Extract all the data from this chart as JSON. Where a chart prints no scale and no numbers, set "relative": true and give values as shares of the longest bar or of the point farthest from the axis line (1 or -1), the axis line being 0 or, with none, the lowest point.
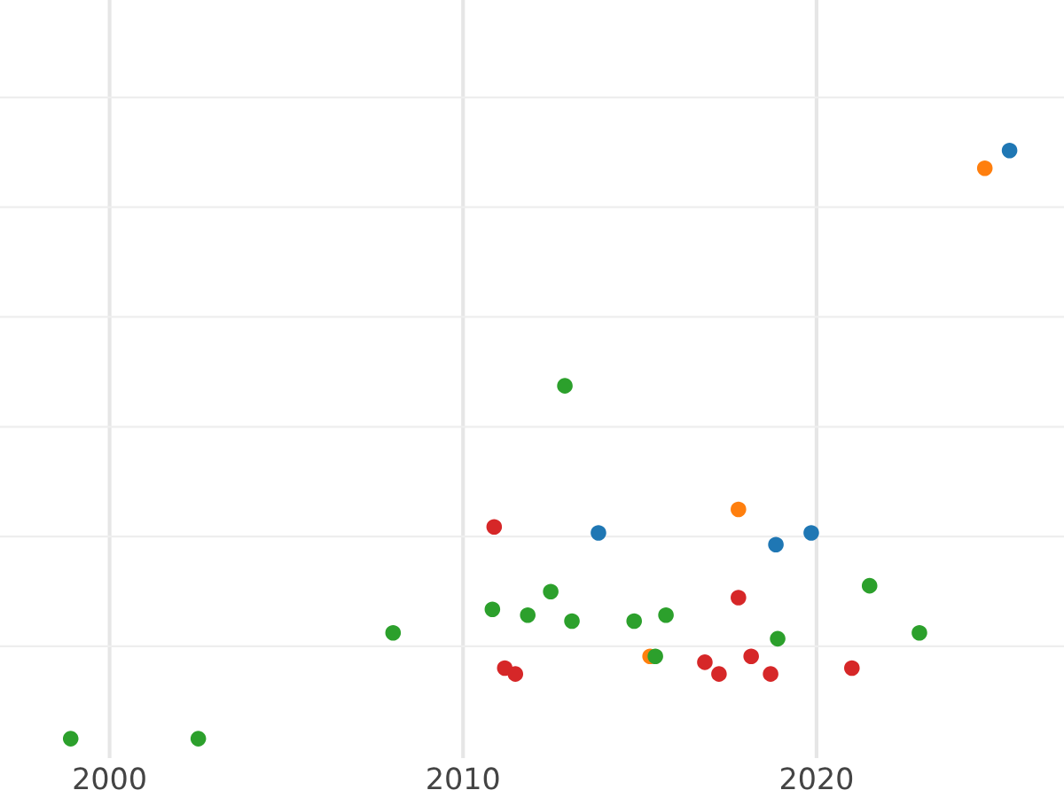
{
  "chart_data": {
    "type": "scatter",
    "relative": true,
    "grid": true,
    "tick_labels": "x",
    "xlim": [
      1996.9,
      2027.0
    ],
    "xticks": [
      2000,
      2010,
      2020
    ],
    "series": [
      {
        "color": "#1f77b4",
        "x": [
          2025.46,
          2013.83,
          2018.85,
          2019.85
        ],
        "values": [
          1.0,
          0.35,
          0.33,
          0.35
        ]
      },
      {
        "color": "#ff7f0e",
        "x": [
          2024.76,
          2017.79,
          2015.29
        ],
        "values": [
          0.97,
          0.39,
          0.14
        ]
      },
      {
        "color": "#2ca02c",
        "x": [
          1998.9,
          2002.51,
          2008.02,
          2010.83,
          2011.83,
          2012.48,
          2012.88,
          2013.08,
          2014.84,
          2015.44,
          2015.74,
          2018.9,
          2021.5,
          2022.91
        ],
        "values": [
          0.0,
          0.0,
          0.18,
          0.22,
          0.21,
          0.25,
          0.6,
          0.2,
          0.2,
          0.14,
          0.21,
          0.17,
          0.26,
          0.18
        ]
      },
      {
        "color": "#d62728",
        "x": [
          2010.88,
          2011.18,
          2011.48,
          2016.84,
          2017.24,
          2017.79,
          2018.15,
          2018.7,
          2021.0
        ],
        "values": [
          0.36,
          0.12,
          0.11,
          0.13,
          0.11,
          0.24,
          0.14,
          0.11,
          0.12
        ]
      }
    ]
  }
}
